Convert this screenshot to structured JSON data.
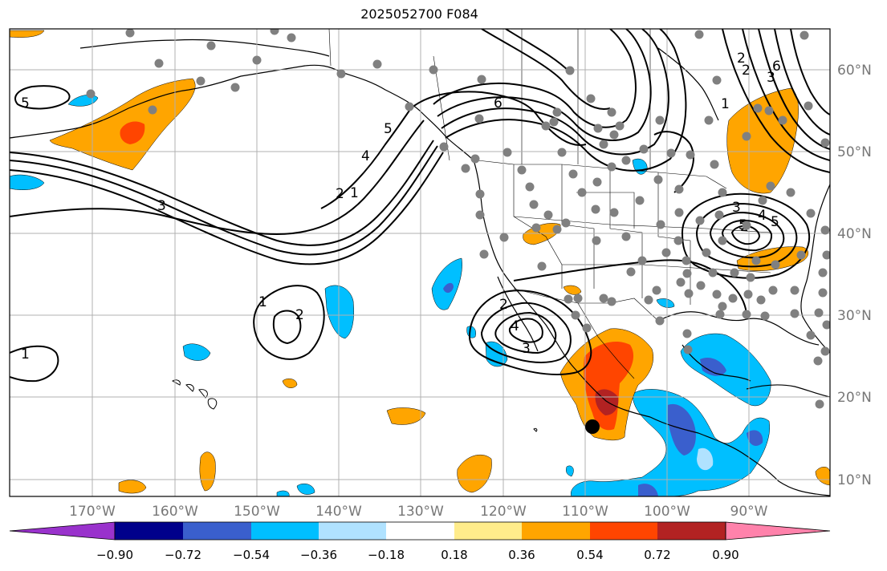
{
  "title": "2025052700 F084",
  "lat_labels": [
    "60°N",
    "50°N",
    "40°N",
    "30°N",
    "20°N",
    "10°N"
  ],
  "lon_labels": [
    "170°W",
    "160°W",
    "150°W",
    "140°W",
    "130°W",
    "120°W",
    "110°W",
    "100°W",
    "90°W"
  ],
  "colorbar": {
    "ticks": [
      "−0.90",
      "−0.72",
      "−0.54",
      "−0.36",
      "−0.18",
      "0.18",
      "0.36",
      "0.54",
      "0.72",
      "0.90"
    ],
    "colors": [
      "#9932cc",
      "#00008b",
      "#3a5fcd",
      "#00bfff",
      "#b0e2ff",
      "#ffffff",
      "#ffec8b",
      "#ffa500",
      "#ff4500",
      "#b22222",
      "#ff82ab"
    ]
  },
  "contour_labels": [
    "5",
    "6",
    "5",
    "4",
    "3",
    "2",
    "1",
    "2",
    "3",
    "1",
    "2",
    "1",
    "2",
    "3",
    "4",
    "2",
    "3",
    "4",
    "5",
    "1",
    "2",
    "5",
    "6"
  ],
  "colors": {
    "orange": "#ffa500",
    "red": "#ff4500",
    "darkred": "#b22222",
    "skyblue": "#00bfff",
    "royalblue": "#3a5fcd",
    "station": "#808080",
    "grid": "#b0b0b0"
  }
}
